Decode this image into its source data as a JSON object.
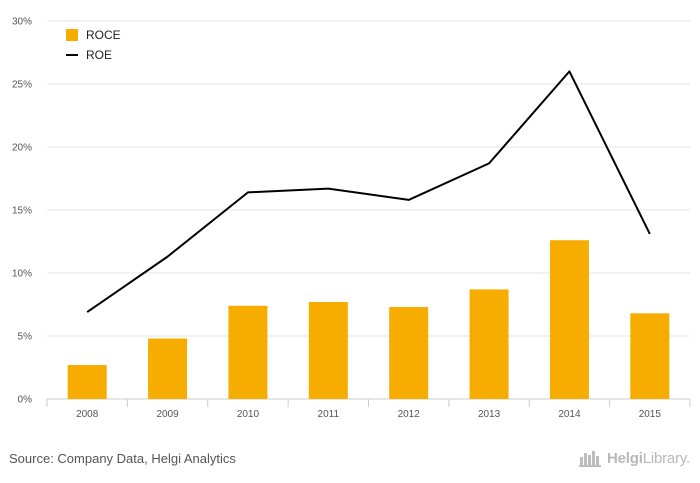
{
  "chart_data": {
    "type": "bar",
    "title": "",
    "xlabel": "",
    "ylabel": "",
    "categories": [
      "2008",
      "2009",
      "2010",
      "2011",
      "2012",
      "2013",
      "2014",
      "2015"
    ],
    "ylim": [
      0,
      30
    ],
    "yticks": [
      "0%",
      "5%",
      "10%",
      "15%",
      "20%",
      "25%",
      "30%"
    ],
    "grid": true,
    "legend_position": "top-left",
    "series": [
      {
        "name": "ROCE",
        "kind": "bar",
        "color": "#f7ad00",
        "values": [
          2.7,
          4.8,
          7.4,
          7.7,
          7.3,
          8.7,
          12.6,
          6.8
        ]
      },
      {
        "name": "ROE",
        "kind": "line",
        "color": "#000000",
        "values": [
          6.9,
          11.3,
          16.4,
          16.7,
          15.8,
          18.7,
          26.0,
          13.1
        ]
      }
    ]
  },
  "footer": {
    "source": "Source: Company Data, Helgi Analytics",
    "logo_bold": "Helgi",
    "logo_light": "Library."
  }
}
